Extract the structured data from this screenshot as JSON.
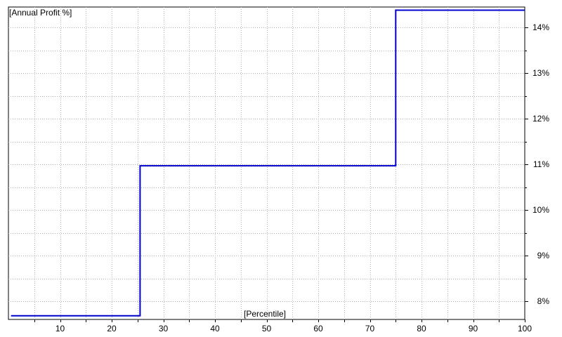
{
  "chart_data": {
    "type": "line",
    "step": true,
    "ylabel": "[Annual Profit %]",
    "xlabel": "[Percentile]",
    "xlim": [
      0,
      100
    ],
    "ylim": [
      7.6,
      14.45
    ],
    "x_ticks": [
      10,
      20,
      30,
      40,
      50,
      60,
      70,
      80,
      90,
      100
    ],
    "y_ticks": [
      8,
      9,
      10,
      11,
      12,
      13,
      14
    ],
    "y_tick_suffix": "%",
    "grid": true,
    "line_color": "#0000cc",
    "series": [
      {
        "x": [
          0.5,
          25.5,
          25.5,
          75,
          75,
          100
        ],
        "y": [
          7.68,
          7.68,
          10.97,
          10.97,
          14.38,
          14.38
        ]
      }
    ]
  }
}
